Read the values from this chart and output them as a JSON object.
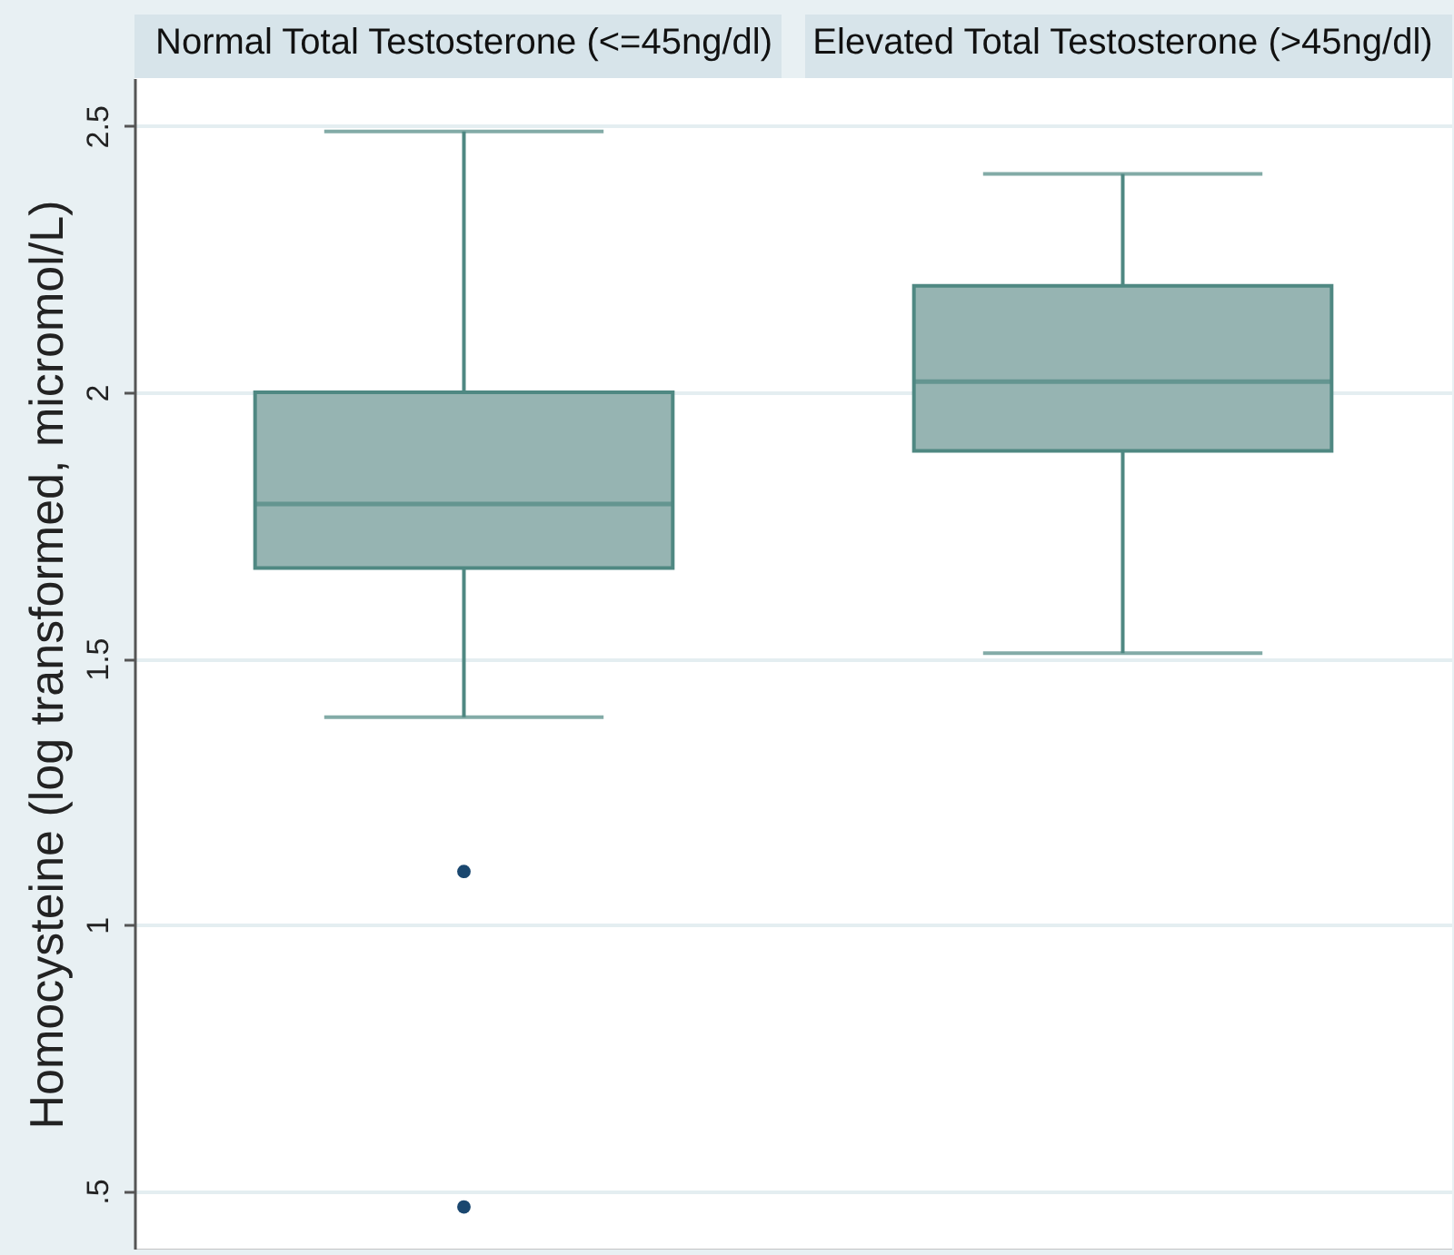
{
  "chart_data": {
    "type": "box",
    "ylabel": "Homocysteine (log transformed, micromol/L)",
    "categories": [
      "Normal Total Testosterone (<=45ng/dl)",
      "Elevated Total Testosterone (>45ng/dl)"
    ],
    "series": [
      {
        "color": "#96b4b2",
        "boxes": [
          {
            "low": 1.39,
            "q1": 1.67,
            "median": 1.79,
            "q3": 2.0,
            "high": 2.49,
            "outliers": [
              1.1,
              0.47
            ]
          },
          {
            "low": 1.51,
            "q1": 1.89,
            "median": 2.02,
            "q3": 2.2,
            "high": 2.41
          }
        ]
      }
    ],
    "ylim": [
      0.39,
      2.59
    ],
    "yticks": [
      {
        "value": 0.5,
        "label": ".5"
      },
      1,
      1.5,
      2,
      2.5
    ],
    "grid": "y"
  }
}
